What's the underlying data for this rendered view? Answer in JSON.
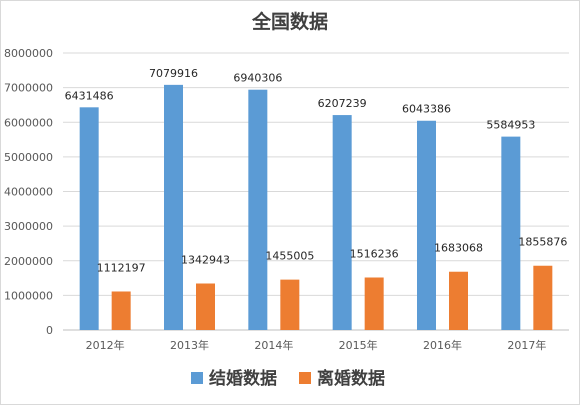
{
  "chart_data": {
    "type": "bar",
    "title": "全国数据",
    "categories": [
      "2012年",
      "2013年",
      "2014年",
      "2015年",
      "2016年",
      "2017年"
    ],
    "series": [
      {
        "name": "结婚数据",
        "color": "#5B9BD5",
        "values": [
          6431486,
          7079916,
          6940306,
          6207239,
          6043386,
          5584953
        ]
      },
      {
        "name": "离婚数据",
        "color": "#ED7D31",
        "values": [
          1112197,
          1342943,
          1455005,
          1516236,
          1683068,
          1855876
        ]
      }
    ],
    "ylim": [
      0,
      8000000
    ],
    "yticks": [
      0,
      1000000,
      2000000,
      3000000,
      4000000,
      5000000,
      6000000,
      7000000,
      8000000
    ],
    "grid": true,
    "legend_position": "bottom"
  }
}
